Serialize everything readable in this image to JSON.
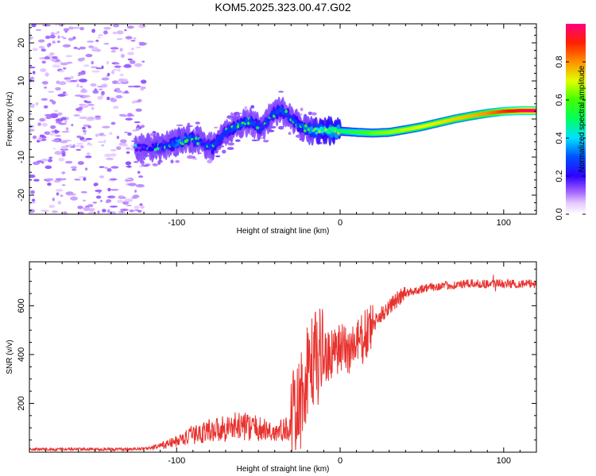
{
  "chart_data": [
    {
      "type": "heatmap",
      "title": "KOM5.2025.323.00.47.G02",
      "xlabel": "Height of straight line (km)",
      "ylabel": "Frequency (Hz)",
      "xlim": [
        -190,
        120
      ],
      "ylim": [
        -25,
        25
      ],
      "xticks": [
        -100,
        0,
        100
      ],
      "yticks": [
        -20,
        -10,
        0,
        10,
        20
      ],
      "colorbar": {
        "label": "Normalized spectral amplitude",
        "range": [
          0,
          1
        ],
        "ticks": [
          0.0,
          0.2,
          0.4,
          0.6,
          0.8
        ]
      },
      "ridge": {
        "x": [
          -125,
          -115,
          -105,
          -98,
          -92,
          -85,
          -78,
          -70,
          -62,
          -55,
          -48,
          -42,
          -36,
          -30,
          -24,
          -18,
          -10,
          0,
          10,
          20,
          30,
          40,
          50,
          60,
          70,
          80,
          90,
          100,
          110,
          120
        ],
        "y": [
          -7.5,
          -7.5,
          -7,
          -6,
          -5,
          -6,
          -7.5,
          -3.5,
          -1.5,
          -0.5,
          -2.5,
          1,
          2.5,
          0,
          -2,
          -3,
          -3,
          -3.2,
          -3.5,
          -3.7,
          -3.5,
          -2.8,
          -2,
          -1,
          0,
          0.8,
          1.5,
          2,
          2.2,
          2.2
        ],
        "amplitude": [
          0.18,
          0.2,
          0.25,
          0.35,
          0.3,
          0.22,
          0.28,
          0.25,
          0.3,
          0.3,
          0.25,
          0.25,
          0.3,
          0.25,
          0.3,
          0.35,
          0.45,
          0.5,
          0.55,
          0.62,
          0.65,
          0.68,
          0.7,
          0.72,
          0.74,
          0.76,
          0.8,
          0.88,
          0.95,
          1.0
        ]
      },
      "noise_region_x": [
        -190,
        -120
      ]
    },
    {
      "type": "line",
      "title": "",
      "xlabel": "Height of straight line (km)",
      "ylabel": "SNR (v/v)",
      "xlim": [
        -190,
        120
      ],
      "ylim": [
        0,
        780
      ],
      "xticks": [
        -100,
        0,
        100
      ],
      "yticks": [
        200,
        400,
        600
      ],
      "series": [
        {
          "name": "SNR",
          "color": "#e8322e",
          "envelope_x": [
            -190,
            -130,
            -118,
            -110,
            -100,
            -90,
            -80,
            -70,
            -60,
            -50,
            -40,
            -32,
            -25,
            -20,
            -15,
            -10,
            -5,
            0,
            5,
            10,
            15,
            20,
            25,
            30,
            40,
            50,
            60,
            80,
            100,
            120
          ],
          "envelope_y": [
            12,
            12,
            15,
            25,
            45,
            70,
            90,
            100,
            110,
            95,
            80,
            95,
            180,
            320,
            380,
            400,
            390,
            420,
            420,
            440,
            470,
            520,
            560,
            600,
            650,
            670,
            680,
            690,
            690,
            690
          ]
        }
      ]
    }
  ],
  "colors": {
    "frame": "#000000",
    "line": "#e8322e",
    "noise_blob": "#d8b4ff"
  }
}
